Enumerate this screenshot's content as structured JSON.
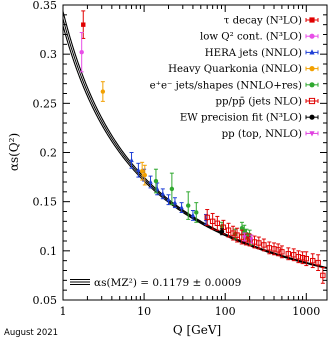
{
  "chart_data": {
    "type": "scatter",
    "x_scale": "log",
    "xlim": [
      1,
      1800
    ],
    "ylim": [
      0.05,
      0.35
    ],
    "xlabel": "Q [GeV]",
    "ylabel": "αs(Q²)",
    "x_ticks": [
      {
        "value": 1,
        "label": "1"
      },
      {
        "value": 10,
        "label": "10"
      },
      {
        "value": 100,
        "label": "100"
      },
      {
        "value": 1000,
        "label": "1000"
      }
    ],
    "y_ticks": [
      {
        "value": 0.05,
        "label": "0.05"
      },
      {
        "value": 0.1,
        "label": "0.1"
      },
      {
        "value": 0.15,
        "label": "0.15"
      },
      {
        "value": 0.2,
        "label": "0.2"
      },
      {
        "value": 0.25,
        "label": "0.25"
      },
      {
        "value": 0.3,
        "label": "0.3"
      },
      {
        "value": 0.35,
        "label": "0.35"
      }
    ],
    "footnote": "August 2021",
    "band_label": "αs(MZ²) = 0.1179 ± 0.0009",
    "band": {
      "alpha_mz": 0.1179,
      "uncertainty": 0.0009,
      "mz": 91.1876,
      "color": "#000000"
    },
    "legend_position": "top-right",
    "series": [
      {
        "name": "τ decay (N³LO)",
        "color": "#e00000",
        "marker": "square",
        "points": [
          {
            "x": 1.777,
            "y": 0.33,
            "err": 0.014
          }
        ]
      },
      {
        "name": "low Q² cont. (N³LO)",
        "color": "#e84ee8",
        "marker": "circle",
        "points": [
          {
            "x": 1.7,
            "y": 0.302,
            "err": 0.02
          }
        ]
      },
      {
        "name": "HERA jets (NNLO)",
        "color": "#1f3fd6",
        "marker": "triangle",
        "points": [
          {
            "x": 7.0,
            "y": 0.192,
            "err": 0.008
          },
          {
            "x": 8.5,
            "y": 0.182,
            "err": 0.007
          },
          {
            "x": 10.0,
            "y": 0.177,
            "err": 0.006
          },
          {
            "x": 12.0,
            "y": 0.17,
            "err": 0.006
          },
          {
            "x": 14.5,
            "y": 0.163,
            "err": 0.006
          },
          {
            "x": 17.0,
            "y": 0.158,
            "err": 0.005
          },
          {
            "x": 20.0,
            "y": 0.152,
            "err": 0.005
          },
          {
            "x": 24.0,
            "y": 0.149,
            "err": 0.005
          },
          {
            "x": 29.0,
            "y": 0.144,
            "err": 0.005
          },
          {
            "x": 40.0,
            "y": 0.136,
            "err": 0.005
          },
          {
            "x": 58.0,
            "y": 0.132,
            "err": 0.005
          }
        ]
      },
      {
        "name": "Heavy Quarkonia (NNLO)",
        "color": "#f2a000",
        "marker": "circle",
        "points": [
          {
            "x": 3.1,
            "y": 0.262,
            "err": 0.01
          },
          {
            "x": 9.46,
            "y": 0.181,
            "err": 0.009
          },
          {
            "x": 10.2,
            "y": 0.177,
            "err": 0.01
          }
        ]
      },
      {
        "name": "e⁺e⁻ jets/shapes (NNLO+res)",
        "color": "#2fa82f",
        "marker": "circle",
        "points": [
          {
            "x": 14,
            "y": 0.171,
            "err": 0.012
          },
          {
            "x": 22,
            "y": 0.163,
            "err": 0.016
          },
          {
            "x": 35,
            "y": 0.146,
            "err": 0.014
          },
          {
            "x": 44,
            "y": 0.139,
            "err": 0.01
          },
          {
            "x": 91.2,
            "y": 0.125,
            "err": 0.004
          },
          {
            "x": 133,
            "y": 0.117,
            "err": 0.005
          },
          {
            "x": 161,
            "y": 0.123,
            "err": 0.006
          },
          {
            "x": 172,
            "y": 0.12,
            "err": 0.006
          },
          {
            "x": 183,
            "y": 0.117,
            "err": 0.005
          },
          {
            "x": 189,
            "y": 0.114,
            "err": 0.004
          },
          {
            "x": 200,
            "y": 0.116,
            "err": 0.005
          },
          {
            "x": 206,
            "y": 0.111,
            "err": 0.005
          }
        ]
      },
      {
        "name": "pp/pp̄ (jets NLO)",
        "color": "#e00000",
        "marker": "open-square",
        "points": [
          {
            "x": 60,
            "y": 0.134,
            "err": 0.008
          },
          {
            "x": 70,
            "y": 0.13,
            "err": 0.008
          },
          {
            "x": 80,
            "y": 0.128,
            "err": 0.007
          },
          {
            "x": 95,
            "y": 0.124,
            "err": 0.007
          },
          {
            "x": 110,
            "y": 0.121,
            "err": 0.007
          },
          {
            "x": 125,
            "y": 0.118,
            "err": 0.007
          },
          {
            "x": 140,
            "y": 0.116,
            "err": 0.007
          },
          {
            "x": 160,
            "y": 0.114,
            "err": 0.007
          },
          {
            "x": 180,
            "y": 0.112,
            "err": 0.006
          },
          {
            "x": 200,
            "y": 0.111,
            "err": 0.006
          },
          {
            "x": 230,
            "y": 0.109,
            "err": 0.006
          },
          {
            "x": 260,
            "y": 0.108,
            "err": 0.006
          },
          {
            "x": 300,
            "y": 0.106,
            "err": 0.006
          },
          {
            "x": 350,
            "y": 0.103,
            "err": 0.006
          },
          {
            "x": 400,
            "y": 0.102,
            "err": 0.006
          },
          {
            "x": 450,
            "y": 0.101,
            "err": 0.006
          },
          {
            "x": 500,
            "y": 0.099,
            "err": 0.006
          },
          {
            "x": 600,
            "y": 0.097,
            "err": 0.006
          },
          {
            "x": 700,
            "y": 0.096,
            "err": 0.006
          },
          {
            "x": 800,
            "y": 0.094,
            "err": 0.006
          },
          {
            "x": 900,
            "y": 0.093,
            "err": 0.006
          },
          {
            "x": 1000,
            "y": 0.092,
            "err": 0.007
          },
          {
            "x": 1200,
            "y": 0.09,
            "err": 0.007
          },
          {
            "x": 1400,
            "y": 0.088,
            "err": 0.008
          },
          {
            "x": 1600,
            "y": 0.075,
            "err": 0.008
          }
        ]
      },
      {
        "name": "EW precision fit (N³LO)",
        "color": "#000000",
        "marker": "circle",
        "points": [
          {
            "x": 91.2,
            "y": 0.1194,
            "err": 0.003
          }
        ]
      },
      {
        "name": "pp (top, NNLO)",
        "color": "#e040e0",
        "marker": "triangle-down",
        "points": [
          {
            "x": 173,
            "y": 0.1141,
            "err": 0.004
          },
          {
            "x": 210,
            "y": 0.112,
            "err": 0.004
          }
        ]
      }
    ]
  }
}
